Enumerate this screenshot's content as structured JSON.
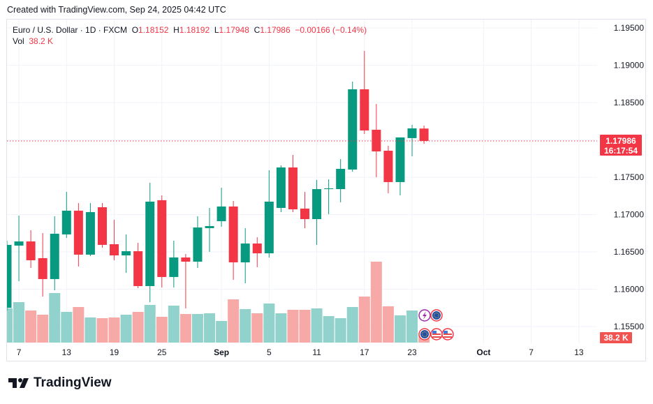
{
  "header": {
    "created": "Created with TradingView.com, Sep 24, 2025 04:42 UTC"
  },
  "legend": {
    "symbol": "Euro / U.S. Dollar · 1D · FXCM",
    "o_label": "O",
    "o": "1.18152",
    "h_label": "H",
    "h": "1.18192",
    "l_label": "L",
    "l": "1.17948",
    "c_label": "C",
    "c": "1.17986",
    "change": "−0.00166 (−0.14%)",
    "vol_label": "Vol",
    "vol": "38.2 K"
  },
  "price_tag": {
    "price": "1.17986",
    "countdown": "16:17:54"
  },
  "volume_tag": "38.2 K",
  "brand": "TradingView",
  "colors": {
    "up": "#089981",
    "down": "#f23645",
    "vol_up": "#92d2cc",
    "vol_down": "#f7a9a7"
  },
  "chart_data": {
    "type": "candlestick",
    "title": "Euro / U.S. Dollar · 1D · FXCM",
    "ylim": [
      1.1535,
      1.1965
    ],
    "y_ticks": [
      "1.19500",
      "1.19000",
      "1.18500",
      "1.18000",
      "1.17500",
      "1.17000",
      "1.16500",
      "1.16000",
      "1.15500"
    ],
    "x_ticks": [
      {
        "label": "7",
        "index": 1
      },
      {
        "label": "13",
        "index": 5
      },
      {
        "label": "19",
        "index": 9
      },
      {
        "label": "25",
        "index": 13
      },
      {
        "label": "Sep",
        "index": 18
      },
      {
        "label": "5",
        "index": 22
      },
      {
        "label": "11",
        "index": 26
      },
      {
        "label": "17",
        "index": 30
      },
      {
        "label": "23",
        "index": 34
      },
      {
        "label": "Oct",
        "index": 40
      },
      {
        "label": "7",
        "index": 44
      },
      {
        "label": "13",
        "index": 48
      }
    ],
    "volume_unit": "K",
    "candles": [
      {
        "date": "Aug 6",
        "o": 1.15752,
        "h": 1.1665,
        "l": 1.15715,
        "c": 1.16594,
        "v": 148
      },
      {
        "date": "Aug 7",
        "o": 1.16584,
        "h": 1.16986,
        "l": 1.16108,
        "c": 1.1664,
        "v": 174
      },
      {
        "date": "Aug 8",
        "o": 1.1664,
        "h": 1.1679,
        "l": 1.16285,
        "c": 1.16388,
        "v": 138
      },
      {
        "date": "Aug 11",
        "o": 1.16416,
        "h": 1.16752,
        "l": 1.15902,
        "c": 1.16136,
        "v": 120
      },
      {
        "date": "Aug 12",
        "o": 1.16136,
        "h": 1.16977,
        "l": 1.15986,
        "c": 1.16743,
        "v": 213
      },
      {
        "date": "Aug 13",
        "o": 1.16734,
        "h": 1.17304,
        "l": 1.16687,
        "c": 1.17052,
        "v": 132
      },
      {
        "date": "Aug 14",
        "o": 1.17052,
        "h": 1.17154,
        "l": 1.16304,
        "c": 1.16463,
        "v": 153
      },
      {
        "date": "Aug 15",
        "o": 1.16463,
        "h": 1.17154,
        "l": 1.16444,
        "c": 1.17033,
        "v": 108
      },
      {
        "date": "Aug 18",
        "o": 1.17098,
        "h": 1.17154,
        "l": 1.16556,
        "c": 1.16594,
        "v": 105
      },
      {
        "date": "Aug 19",
        "o": 1.16603,
        "h": 1.1693,
        "l": 1.16388,
        "c": 1.16453,
        "v": 108
      },
      {
        "date": "Aug 20",
        "o": 1.16453,
        "h": 1.16734,
        "l": 1.1622,
        "c": 1.16509,
        "v": 120
      },
      {
        "date": "Aug 21",
        "o": 1.16509,
        "h": 1.16622,
        "l": 1.16014,
        "c": 1.16042,
        "v": 132
      },
      {
        "date": "Aug 22",
        "o": 1.16042,
        "h": 1.17425,
        "l": 1.15827,
        "c": 1.17173,
        "v": 162
      },
      {
        "date": "Aug 25",
        "o": 1.17192,
        "h": 1.17257,
        "l": 1.16023,
        "c": 1.16164,
        "v": 111
      },
      {
        "date": "Aug 26",
        "o": 1.16164,
        "h": 1.1665,
        "l": 1.16023,
        "c": 1.16425,
        "v": 159
      },
      {
        "date": "Aug 27",
        "o": 1.16425,
        "h": 1.16472,
        "l": 1.15743,
        "c": 1.16369,
        "v": 123
      },
      {
        "date": "Aug 28",
        "o": 1.16369,
        "h": 1.16977,
        "l": 1.16285,
        "c": 1.16827,
        "v": 123
      },
      {
        "date": "Aug 29",
        "o": 1.16818,
        "h": 1.17089,
        "l": 1.165,
        "c": 1.16846,
        "v": 126
      },
      {
        "date": "Sep 1",
        "o": 1.16911,
        "h": 1.1736,
        "l": 1.16837,
        "c": 1.17108,
        "v": 93
      },
      {
        "date": "Sep 2",
        "o": 1.17108,
        "h": 1.17182,
        "l": 1.16126,
        "c": 1.1636,
        "v": 186
      },
      {
        "date": "Sep 3",
        "o": 1.1636,
        "h": 1.16818,
        "l": 1.1608,
        "c": 1.16612,
        "v": 144
      },
      {
        "date": "Sep 4",
        "o": 1.16612,
        "h": 1.16696,
        "l": 1.16295,
        "c": 1.16481,
        "v": 126
      },
      {
        "date": "Sep 5",
        "o": 1.16481,
        "h": 1.17594,
        "l": 1.16425,
        "c": 1.17173,
        "v": 168
      },
      {
        "date": "Sep 8",
        "o": 1.17089,
        "h": 1.17659,
        "l": 1.17033,
        "c": 1.17631,
        "v": 126
      },
      {
        "date": "Sep 9",
        "o": 1.17631,
        "h": 1.17799,
        "l": 1.17033,
        "c": 1.1707,
        "v": 141
      },
      {
        "date": "Sep 10",
        "o": 1.1708,
        "h": 1.17304,
        "l": 1.16818,
        "c": 1.16939,
        "v": 141
      },
      {
        "date": "Sep 11",
        "o": 1.16939,
        "h": 1.17463,
        "l": 1.16594,
        "c": 1.17341,
        "v": 147
      },
      {
        "date": "Sep 12",
        "o": 1.17341,
        "h": 1.17472,
        "l": 1.17005,
        "c": 1.17351,
        "v": 114
      },
      {
        "date": "Sep 15",
        "o": 1.17341,
        "h": 1.17743,
        "l": 1.17164,
        "c": 1.17612,
        "v": 105
      },
      {
        "date": "Sep 16",
        "o": 1.17603,
        "h": 1.1878,
        "l": 1.17575,
        "c": 1.18678,
        "v": 153
      },
      {
        "date": "Sep 17",
        "o": 1.18678,
        "h": 1.19192,
        "l": 1.1808,
        "c": 1.18126,
        "v": 198
      },
      {
        "date": "Sep 18",
        "o": 1.18136,
        "h": 1.18481,
        "l": 1.175,
        "c": 1.17846,
        "v": 348
      },
      {
        "date": "Sep 19",
        "o": 1.17855,
        "h": 1.17921,
        "l": 1.17285,
        "c": 1.17435,
        "v": 156
      },
      {
        "date": "Sep 22",
        "o": 1.17435,
        "h": 1.18033,
        "l": 1.17257,
        "c": 1.18033,
        "v": 117
      },
      {
        "date": "Sep 23",
        "o": 1.18024,
        "h": 1.18201,
        "l": 1.17781,
        "c": 1.18154,
        "v": 138
      },
      {
        "date": "Sep 24",
        "o": 1.18152,
        "h": 1.18192,
        "l": 1.17948,
        "c": 1.17986,
        "v": 38.2
      }
    ],
    "last_price": 1.17986
  }
}
